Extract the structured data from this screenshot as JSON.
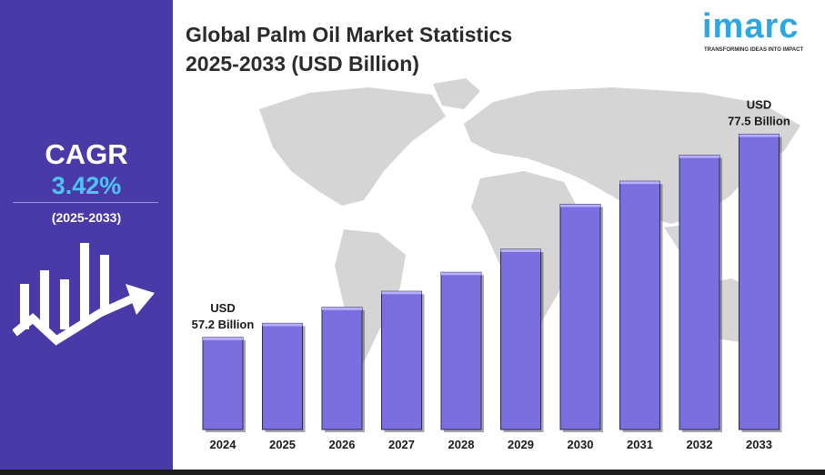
{
  "title": {
    "line1": "Global Palm Oil Market Statistics",
    "line2": "2025-2033 (USD Billion)"
  },
  "logo": {
    "name": "imarc",
    "tagline": "TRANSFORMING IDEAS INTO IMPACT"
  },
  "cagr": {
    "label": "CAGR",
    "value": "3.42%",
    "period": "(2025-2033)"
  },
  "colors": {
    "panel": "#4a3aa7",
    "cagr_value": "#4fc3f7",
    "bar": "#7b6ee0",
    "map": "#d5d5d5",
    "brand": "#2ea6e0"
  },
  "chart_data": {
    "type": "bar",
    "categories": [
      "2024",
      "2025",
      "2026",
      "2027",
      "2028",
      "2029",
      "2030",
      "2031",
      "2032",
      "2033"
    ],
    "values": [
      57.2,
      58.6,
      60.2,
      61.8,
      63.7,
      66.0,
      70.5,
      72.8,
      75.4,
      77.5
    ],
    "annotations": [
      {
        "category": "2024",
        "lines": [
          "USD",
          "57.2 Billion"
        ]
      },
      {
        "category": "2033",
        "lines": [
          "USD",
          "77.5 Billion"
        ]
      }
    ],
    "ylim": [
      48,
      78
    ],
    "grid": false,
    "background": "world-map"
  }
}
